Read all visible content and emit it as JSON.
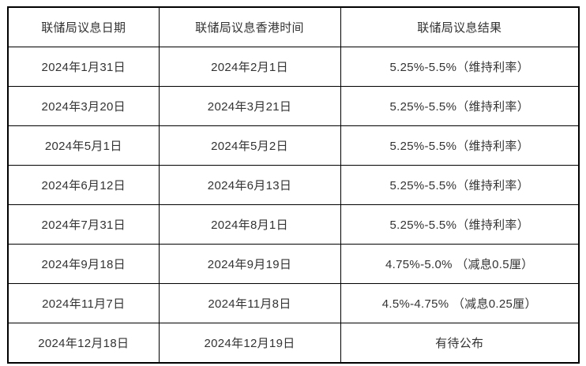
{
  "table": {
    "name": "fed-meeting-schedule-2024",
    "headers": [
      "联储局议息日期",
      "联储局议息香港时间",
      "联储局议息结果"
    ],
    "rows": [
      {
        "date": "2024年1月31日",
        "hk_time": "2024年2月1日",
        "result": "5.25%-5.5%（维持利率）"
      },
      {
        "date": "2024年3月20日",
        "hk_time": "2024年3月21日",
        "result": "5.25%-5.5%（维持利率）"
      },
      {
        "date": "2024年5月1日",
        "hk_time": "2024年5月2日",
        "result": "5.25%-5.5%（维持利率）"
      },
      {
        "date": "2024年6月12日",
        "hk_time": "2024年6月13日",
        "result": "5.25%-5.5%（维持利率）"
      },
      {
        "date": "2024年7月31日",
        "hk_time": "2024年8月1日",
        "result": "5.25%-5.5%（维持利率）"
      },
      {
        "date": "2024年9月18日",
        "hk_time": "2024年9月19日",
        "result": "4.75%-5.0% （减息0.5厘）"
      },
      {
        "date": "2024年11月7日",
        "hk_time": "2024年11月8日",
        "result": "4.5%-4.75% （减息0.25厘）"
      },
      {
        "date": "2024年12月18日",
        "hk_time": "2024年12月19日",
        "result": "有待公布"
      }
    ],
    "colors": {
      "border": "#000000",
      "text": "#333333",
      "background": "#ffffff"
    }
  }
}
